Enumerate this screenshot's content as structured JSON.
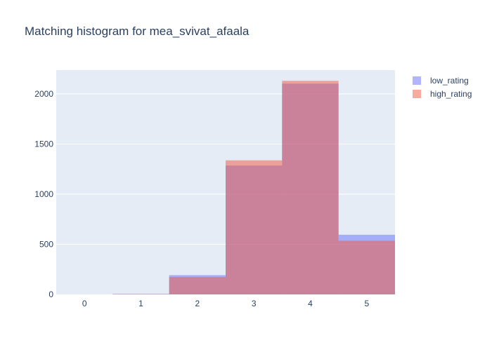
{
  "chart_data": {
    "type": "bar",
    "mode": "overlay",
    "title": "Matching histogram for mea_svivat_afaala",
    "xlabel": "",
    "ylabel": "",
    "categories": [
      "0",
      "1",
      "2",
      "3",
      "4",
      "5"
    ],
    "x": [
      0,
      1,
      2,
      3,
      4,
      5
    ],
    "xlim": [
      -0.5,
      5.5
    ],
    "ylim": [
      0,
      2237
    ],
    "y_ticks": [
      0,
      500,
      1000,
      1500,
      2000
    ],
    "grid": true,
    "legend_position": "top-right",
    "series": [
      {
        "name": "low_rating",
        "color": "#636efa",
        "opacity": 0.5,
        "values": [
          0,
          5,
          192,
          1285,
          2102,
          595
        ]
      },
      {
        "name": "high_rating",
        "color": "#EF553B",
        "opacity": 0.5,
        "values": [
          0,
          3,
          173,
          1337,
          2130,
          535
        ]
      }
    ],
    "plot_bg": "#e5ecf6",
    "text_color": "#2a3f5f"
  }
}
